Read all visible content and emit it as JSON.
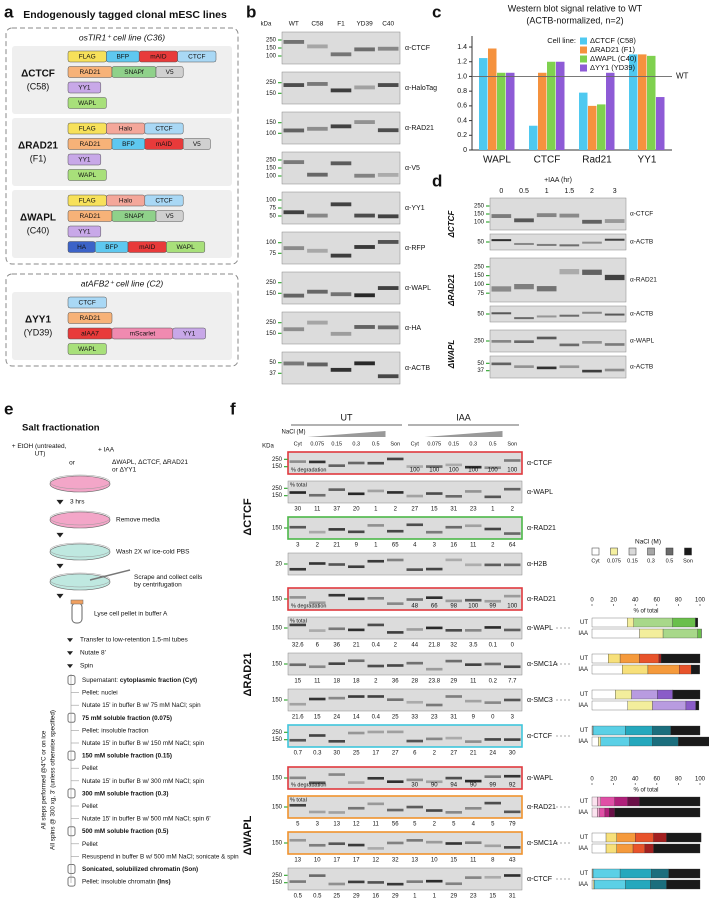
{
  "panel_a": {
    "letter": "a",
    "title": "Endogenously tagged clonal mESC lines",
    "groups": [
      {
        "header": "osTIR1⁺ cell line (C36)",
        "lines": [
          {
            "name": "ΔCTCF",
            "clone": "(C58)",
            "rows": [
              [
                {
                  "label": "FLAG",
                  "color": "#f7e15a"
                },
                {
                  "label": "BFP",
                  "color": "#5ec8f0"
                },
                {
                  "label": "mAID",
                  "color": "#e83a3a"
                },
                {
                  "label": "CTCF",
                  "color": "#a9d8f5"
                }
              ],
              [
                {
                  "label": "RAD21",
                  "color": "#f7b278"
                },
                {
                  "label": "SNAPf",
                  "color": "#8fd18a"
                },
                {
                  "label": "V5",
                  "color": "#d0d0d0"
                }
              ],
              [
                {
                  "label": "YY1",
                  "color": "#c8a8e8"
                }
              ],
              [
                {
                  "label": "WAPL",
                  "color": "#a8e07a"
                }
              ]
            ]
          },
          {
            "name": "ΔRAD21",
            "clone": "(F1)",
            "rows": [
              [
                {
                  "label": "FLAG",
                  "color": "#f7e15a"
                },
                {
                  "label": "Halo",
                  "color": "#f4a79a"
                },
                {
                  "label": "CTCF",
                  "color": "#a9d8f5"
                }
              ],
              [
                {
                  "label": "RAD21",
                  "color": "#f7b278"
                },
                {
                  "label": "BFP",
                  "color": "#5ec8f0"
                },
                {
                  "label": "mAID",
                  "color": "#e83a3a"
                },
                {
                  "label": "V5",
                  "color": "#d0d0d0"
                }
              ],
              [
                {
                  "label": "YY1",
                  "color": "#c8a8e8"
                }
              ],
              [
                {
                  "label": "WAPL",
                  "color": "#a8e07a"
                }
              ]
            ]
          },
          {
            "name": "ΔWAPL",
            "clone": "(C40)",
            "rows": [
              [
                {
                  "label": "FLAG",
                  "color": "#f7e15a"
                },
                {
                  "label": "Halo",
                  "color": "#f4a79a"
                },
                {
                  "label": "CTCF",
                  "color": "#a9d8f5"
                }
              ],
              [
                {
                  "label": "RAD21",
                  "color": "#f7b278"
                },
                {
                  "label": "SNAPf",
                  "color": "#8fd18a"
                },
                {
                  "label": "V5",
                  "color": "#d0d0d0"
                }
              ],
              [
                {
                  "label": "YY1",
                  "color": "#c8a8e8"
                }
              ],
              [
                {
                  "label": "HA",
                  "color": "#3c63c8"
                },
                {
                  "label": "BFP",
                  "color": "#5ec8f0"
                },
                {
                  "label": "mAID",
                  "color": "#e83a3a"
                },
                {
                  "label": "WAPL",
                  "color": "#a8e07a"
                }
              ]
            ]
          }
        ]
      },
      {
        "header": "atAFB2⁺ cell line (C2)",
        "lines": [
          {
            "name": "ΔYY1",
            "clone": "(YD39)",
            "rows": [
              [
                {
                  "label": "CTCF",
                  "color": "#a9d8f5"
                }
              ],
              [
                {
                  "label": "RAD21",
                  "color": "#f7b278"
                }
              ],
              [
                {
                  "label": "aIAA7",
                  "color": "#e83a3a"
                },
                {
                  "label": "mScarlet",
                  "color": "#f08ab0"
                },
                {
                  "label": "YY1",
                  "color": "#c8a8e8"
                }
              ],
              [
                {
                  "label": "WAPL",
                  "color": "#a8e07a"
                }
              ]
            ]
          }
        ]
      }
    ]
  },
  "panel_b": {
    "letter": "b",
    "kda": "kDa",
    "lanes": [
      "WT",
      "C58",
      "F1",
      "YD39",
      "C40"
    ],
    "blots": [
      {
        "antibody": "α-CTCF",
        "markers": [
          250,
          150,
          100
        ]
      },
      {
        "antibody": "α-HaloTag",
        "markers": [
          250,
          150
        ]
      },
      {
        "antibody": "α-RAD21",
        "markers": [
          150,
          100
        ]
      },
      {
        "antibody": "α-V5",
        "markers": [
          250,
          150,
          100
        ]
      },
      {
        "antibody": "α-YY1",
        "markers": [
          100,
          75,
          50
        ]
      },
      {
        "antibody": "α-RFP",
        "markers": [
          100,
          75
        ]
      },
      {
        "antibody": "α-WAPL",
        "markers": [
          250,
          150
        ]
      },
      {
        "antibody": "α-HA",
        "markers": [
          250,
          150
        ]
      },
      {
        "antibody": "α-ACTB",
        "markers": [
          50,
          37
        ]
      }
    ]
  },
  "panel_c": {
    "letter": "c"
  },
  "chart_data": {
    "type": "bar",
    "title": "Western blot signal relative to WT",
    "subtitle": "(ACTB-normalized, n=2)",
    "categories": [
      "WAPL",
      "CTCF",
      "Rad21",
      "YY1"
    ],
    "legend_title": "Cell line:",
    "legend": "upper right",
    "series": [
      {
        "name": "ΔCTCF (C58)",
        "color": "#4fc9f0",
        "values": [
          1.25,
          0.33,
          0.78,
          1.3
        ]
      },
      {
        "name": "ΔRAD21 (F1)",
        "color": "#f5923e",
        "values": [
          1.38,
          1.05,
          0.6,
          1.3
        ]
      },
      {
        "name": "ΔWAPL (C40)",
        "color": "#7fd14f",
        "values": [
          1.05,
          1.2,
          0.62,
          1.28
        ]
      },
      {
        "name": "ΔYY1 (YD39)",
        "color": "#8e5bd6",
        "values": [
          1.05,
          1.2,
          1.05,
          0.72
        ]
      }
    ],
    "ylim": [
      0,
      1.55
    ],
    "yticks": [
      0,
      0.2,
      0.4,
      0.6,
      0.8,
      {
        "value": 1,
        "label": "1.0"
      },
      1.2,
      1.4
    ],
    "reference": {
      "value": 1,
      "label": "WT"
    }
  },
  "panel_d": {
    "letter": "d",
    "condition": "+IAA (hr)",
    "times": [
      0,
      0.5,
      1,
      1.5,
      2,
      3
    ],
    "groups": [
      {
        "name": "ΔCTCF",
        "blots": [
          {
            "antibody": "α-CTCF",
            "markers": [
              250,
              150,
              100
            ]
          },
          {
            "antibody": "α-ACTB",
            "markers": [
              50
            ]
          }
        ]
      },
      {
        "name": "ΔRAD21",
        "blots": [
          {
            "antibody": "α-RAD21",
            "markers": [
              250,
              150,
              100,
              75
            ]
          },
          {
            "antibody": "α-ACTB",
            "markers": [
              50
            ]
          }
        ]
      },
      {
        "name": "ΔWAPL",
        "blots": [
          {
            "antibody": "α-WAPL",
            "markers": [
              250
            ]
          },
          {
            "antibody": "α-ACTB",
            "markers": [
              50,
              37
            ]
          }
        ]
      }
    ]
  },
  "panel_e": {
    "letter": "e",
    "title": "Salt fractionation",
    "treatment_a": "+ EtOH (untreated, UT)",
    "or": "or",
    "treatment_b": "+ IAA",
    "lines": "ΔWAPL, ΔCTCF, ΔRAD21 or ΔYY1",
    "steps": [
      "3 hrs",
      "Remove media",
      "Wash 2X w/ ice-cold PBS",
      "Scrape and collect cells by centrifugation",
      "Lyse cell pellet in buffer A",
      "Transfer to low-retention 1.5-ml tubes",
      "Nutate 8'",
      "Spin"
    ],
    "items": [
      [
        {
          "t": "Supernatant: "
        },
        {
          "b": "cytoplasmic fraction (Cyt)"
        }
      ],
      [
        {
          "t": "Pellet: nuclei"
        }
      ],
      [
        {
          "t": "Nutate 15' in buffer B w/ 75 mM NaCl; spin"
        }
      ],
      [
        {
          "b": "75 mM soluble fraction (0.075)"
        }
      ],
      [
        {
          "t": "Pellet: insoluble fraction"
        }
      ],
      [
        {
          "t": "Nutate 15' in buffer B w/ 150 mM NaCl; spin"
        }
      ],
      [
        {
          "b": "150 mM soluble fraction (0.15)"
        }
      ],
      [
        {
          "t": "Pellet"
        }
      ],
      [
        {
          "t": "Nutate 15' in buffer B w/ 300 mM NaCl; spin"
        }
      ],
      [
        {
          "b": "300 mM soluble fraction (0.3)"
        }
      ],
      [
        {
          "t": "Pellet"
        }
      ],
      [
        {
          "t": "Nutate 15' in buffer B w/ 500 mM NaCl; spin 6'"
        }
      ],
      [
        {
          "b": "500 mM soluble fraction (0.5)"
        }
      ],
      [
        {
          "t": "Pellet"
        }
      ],
      [
        {
          "t": "Resuspend in buffer B w/ 500 mM NaCl; sonicate & spin"
        }
      ],
      [
        {
          "b": "Sonicated, solubilized chromatin (Son)"
        }
      ],
      [
        {
          "t": "Pellet: insoluble chromatin "
        },
        {
          "b": "(Ins)"
        }
      ]
    ],
    "notes": [
      "All steps performed @4°C or on ice",
      "All spins @ 300 xg, 3' (unless otherwise specified)"
    ]
  },
  "panel_f": {
    "letter": "f",
    "kda": "KDa",
    "nacl": "NaCl (M)",
    "conditions": [
      "UT",
      "IAA"
    ],
    "fractions": [
      "Cyt",
      "0.075",
      "0.15",
      "0.3",
      "0.5",
      "Son"
    ],
    "degradation_label": "% degradation",
    "total_label": "% total",
    "legend_colors": [
      "#ffffff",
      "#f5f0a0",
      "#d9d9d9",
      "#a6a6a6",
      "#6b6b6b",
      "#1a1a1a"
    ],
    "bar_axis": {
      "label": "% of total",
      "xlim": [
        0,
        100
      ],
      "xticks": [
        0,
        20,
        40,
        60,
        80,
        100
      ]
    },
    "groups": [
      {
        "name": "ΔCTCF",
        "blots": [
          {
            "antibody": "α-CTCF",
            "markers": [
              250,
              150
            ],
            "frame": "#e0393e",
            "degradation": [
              100,
              100,
              100,
              100,
              100,
              100
            ]
          },
          {
            "antibody": "α-WAPL",
            "markers": [
              250,
              150
            ],
            "percent": [
              [
                30,
                11,
                37,
                20,
                1,
                2
              ],
              [
                27,
                15,
                31,
                23,
                1,
                2
              ]
            ]
          },
          {
            "antibody": "α-RAD21",
            "markers": [
              150
            ],
            "frame": "#4cb848",
            "percent": [
              [
                3,
                2,
                21,
                9,
                1,
                65
              ],
              [
                4,
                3,
                16,
                11,
                2,
                64
              ]
            ]
          },
          {
            "antibody": "α-H2B",
            "markers": [
              20
            ]
          }
        ]
      },
      {
        "name": "ΔRAD21",
        "blots": [
          {
            "antibody": "α-RAD21",
            "markers": [
              150
            ],
            "frame": "#e0393e",
            "degradation": [
              48,
              66,
              98,
              100,
              99,
              100
            ]
          },
          {
            "antibody": "α-WAPL",
            "markers": [
              150
            ],
            "percent": [
              [
                32.6,
                6,
                36,
                21,
                0.4,
                2
              ],
              [
                44,
                21.8,
                32,
                3.5,
                0.1,
                0
              ]
            ],
            "palette": [
              "#ffffff",
              "#f3ee9c",
              "#a8d88a",
              "#6abf4b",
              "#3a8a2a",
              "#1a1a1a"
            ]
          },
          {
            "antibody": "α-SMC1A",
            "markers": [
              150
            ],
            "percent": [
              [
                15,
                11,
                18,
                18,
                2,
                36
              ],
              [
                28,
                23.8,
                29,
                11,
                0.2,
                7.7
              ]
            ],
            "palette": [
              "#ffffff",
              "#f7e07a",
              "#f59a3c",
              "#e8532b",
              "#a32020",
              "#1a1a1a"
            ]
          },
          {
            "antibody": "α-SMC3",
            "markers": [
              150
            ],
            "percent": [
              [
                21.6,
                15,
                24,
                14,
                0.4,
                25
              ],
              [
                33,
                23,
                31,
                9,
                0,
                3
              ]
            ],
            "palette": [
              "#ffffff",
              "#f3ee9c",
              "#b89be0",
              "#8a5cc8",
              "#5a2e8e",
              "#1a1a1a"
            ]
          },
          {
            "antibody": "α-CTCF",
            "markers": [
              250,
              150
            ],
            "frame": "#3fc6dc",
            "percent": [
              [
                0.7,
                0.3,
                30,
                25,
                17,
                27
              ],
              [
                6,
                2,
                27,
                21,
                24,
                30
              ]
            ],
            "palette": [
              "#ffffff",
              "#f3ee9c",
              "#5bd0e6",
              "#25a8bd",
              "#1b6e7d",
              "#1a1a1a"
            ]
          }
        ]
      },
      {
        "name": "ΔWAPL",
        "blots": [
          {
            "antibody": "α-WAPL",
            "markers": [
              150
            ],
            "frame": "#e0393e",
            "degradation": [
              30,
              90,
              94,
              90,
              99,
              92
            ]
          },
          {
            "antibody": "α-RAD21",
            "markers": [
              150
            ],
            "frame": "#f0932e",
            "percent": [
              [
                5,
                3,
                13,
                12,
                11,
                56
              ],
              [
                5,
                2,
                5,
                4,
                5,
                79
              ]
            ],
            "palette": [
              "#fbe3ef",
              "#f1a8cf",
              "#e04fa6",
              "#b0207a",
              "#6a1047",
              "#1a1a1a"
            ]
          },
          {
            "antibody": "α-SMC1A",
            "markers": [
              150
            ],
            "frame": "#f0932e",
            "percent": [
              [
                13,
                10,
                17,
                17,
                12,
                32
              ],
              [
                13,
                10,
                15,
                11,
                8,
                43
              ]
            ],
            "palette": [
              "#ffffff",
              "#f7e07a",
              "#f59a3c",
              "#e8532b",
              "#a32020",
              "#1a1a1a"
            ]
          },
          {
            "antibody": "α-CTCF",
            "markers": [
              250,
              150
            ],
            "percent": [
              [
                0.5,
                0.5,
                25,
                29,
                16,
                29
              ],
              [
                1,
                1,
                29,
                23,
                15,
                31
              ]
            ],
            "palette": [
              "#ffffff",
              "#f3ee9c",
              "#5bd0e6",
              "#25a8bd",
              "#1b6e7d",
              "#1a1a1a"
            ]
          }
        ]
      }
    ]
  }
}
